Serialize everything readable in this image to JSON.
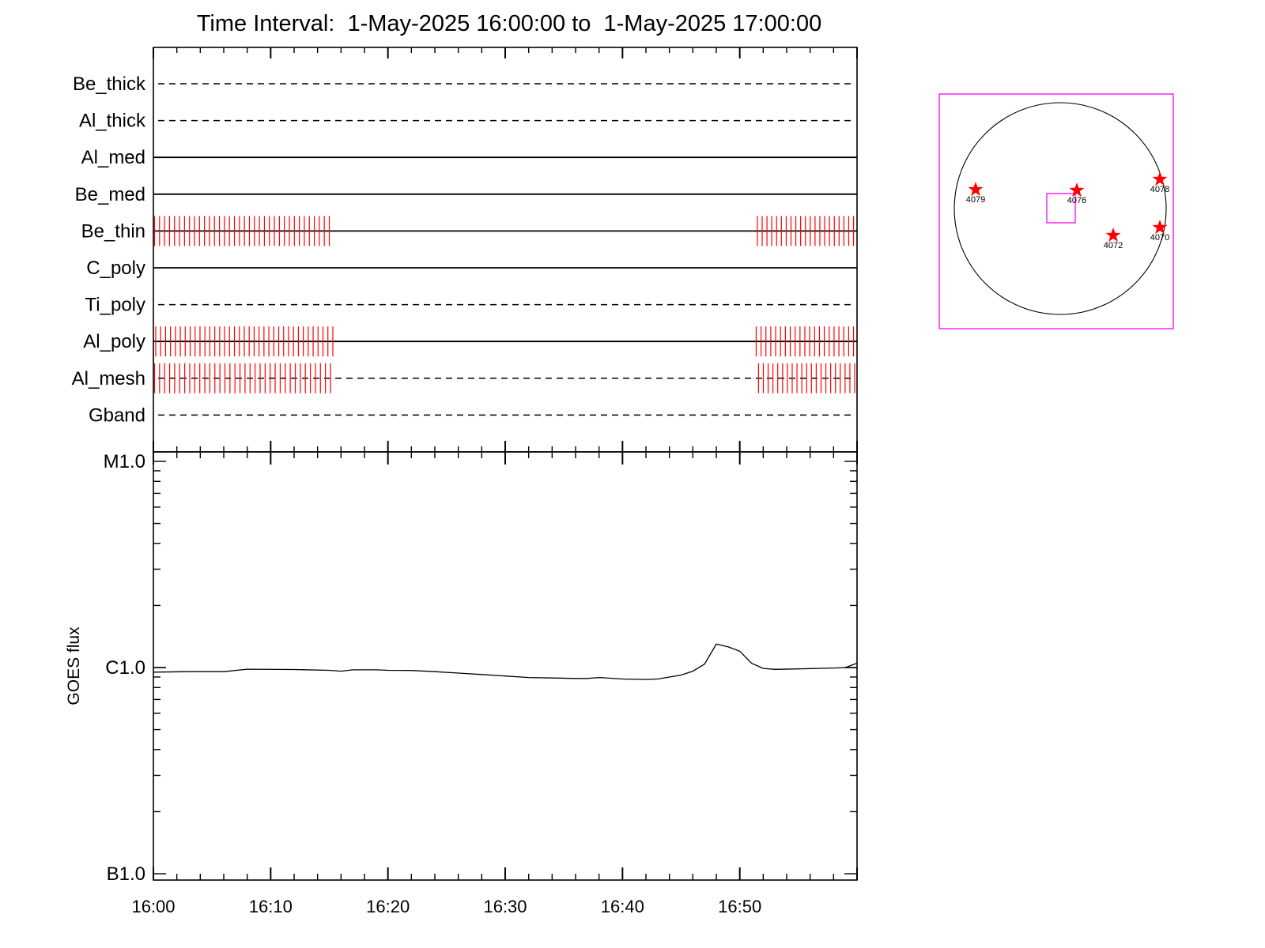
{
  "title": "Time Interval:  1-May-2025 16:00:00 to  1-May-2025 17:00:00",
  "colors": {
    "exposure": "#ff0000",
    "axis": "#000000",
    "fov": "#ff00ff",
    "star": "#ff0000"
  },
  "chart_data": [
    {
      "type": "timeline",
      "x_range": [
        "16:00",
        "17:00"
      ],
      "filters": [
        {
          "name": "Be_thick",
          "style": "dashed",
          "exposures": []
        },
        {
          "name": "Al_thick",
          "style": "dashed",
          "exposures": []
        },
        {
          "name": "Al_med",
          "style": "solid",
          "exposures": []
        },
        {
          "name": "Be_med",
          "style": "solid",
          "exposures": []
        },
        {
          "name": "Be_thin",
          "style": "solid",
          "exposures": [
            {
              "start_min": 0.1,
              "end_min": 15.0,
              "count": 36
            },
            {
              "start_min": 51.5,
              "end_min": 59.7,
              "count": 21
            }
          ]
        },
        {
          "name": "C_poly",
          "style": "solid",
          "exposures": []
        },
        {
          "name": "Ti_poly",
          "style": "dashed",
          "exposures": []
        },
        {
          "name": "Al_poly",
          "style": "solid",
          "exposures": [
            {
              "start_min": 0.2,
              "end_min": 15.3,
              "count": 37
            },
            {
              "start_min": 51.4,
              "end_min": 59.7,
              "count": 21
            }
          ]
        },
        {
          "name": "Al_mesh",
          "style": "dashed",
          "exposures": [
            {
              "start_min": 0.1,
              "end_min": 15.1,
              "count": 36
            },
            {
              "start_min": 51.6,
              "end_min": 59.8,
              "count": 21
            }
          ]
        },
        {
          "name": "Gband",
          "style": "dashed",
          "exposures": []
        }
      ]
    },
    {
      "type": "line",
      "ylabel": "GOES flux",
      "y_scale": "log",
      "ylim": [
        1e-07,
        1e-05
      ],
      "yticks": [
        {
          "label": "B1.0",
          "value": 1e-07
        },
        {
          "label": "C1.0",
          "value": 1e-06
        },
        {
          "label": "M1.0",
          "value": 1e-05
        }
      ],
      "xticks": [
        "16:00",
        "16:10",
        "16:20",
        "16:30",
        "16:40",
        "16:50"
      ],
      "series": [
        {
          "x": [
            "16:00",
            "16:03",
            "16:06",
            "16:08",
            "16:12",
            "16:15",
            "16:16",
            "16:17",
            "16:19",
            "16:20",
            "16:22",
            "16:24",
            "16:26",
            "16:28",
            "16:30",
            "16:32",
            "16:34",
            "16:36",
            "16:37",
            "16:38",
            "16:40",
            "16:42",
            "16:43",
            "16:45",
            "16:46",
            "16:47",
            "16:48",
            "16:49",
            "16:50",
            "16:51",
            "16:52",
            "16:53",
            "16:55",
            "16:58",
            "16:59",
            "17:00"
          ],
          "y": [
            9.5e-07,
            9.55e-07,
            9.55e-07,
            9.82e-07,
            9.78e-07,
            9.7e-07,
            9.6e-07,
            9.75e-07,
            9.75e-07,
            9.7e-07,
            9.68e-07,
            9.55e-07,
            9.4e-07,
            9.25e-07,
            9.1e-07,
            8.95e-07,
            8.9e-07,
            8.85e-07,
            8.85e-07,
            8.95e-07,
            8.8e-07,
            8.75e-07,
            8.8e-07,
            9.2e-07,
            9.6e-07,
            1.04e-06,
            1.3e-06,
            1.26e-06,
            1.2e-06,
            1.05e-06,
            9.9e-07,
            9.8e-07,
            9.85e-07,
            9.95e-07,
            1e-06,
            1.05e-06
          ]
        }
      ]
    }
  ],
  "solar_map": {
    "active_regions": [
      {
        "label": "4079"
      },
      {
        "label": "4076"
      },
      {
        "label": "4078"
      },
      {
        "label": "4072"
      },
      {
        "label": "4070"
      }
    ]
  }
}
